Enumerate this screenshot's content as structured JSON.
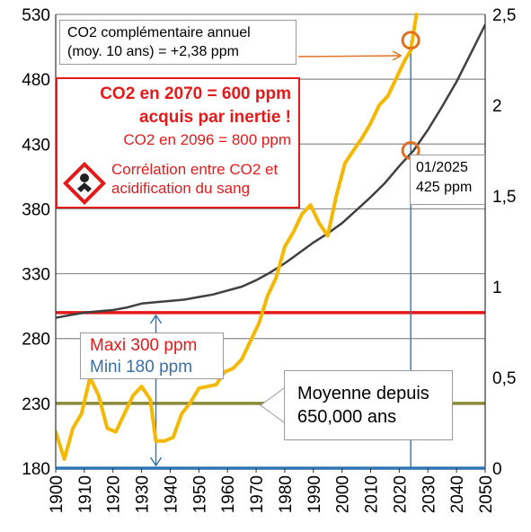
{
  "chart_data": {
    "type": "line",
    "y_left": {
      "ylim": [
        180,
        530
      ],
      "ticks": [
        "530",
        "480",
        "430",
        "380",
        "330",
        "280",
        "230",
        "180"
      ]
    },
    "y_right": {
      "ylim": [
        0,
        2.5
      ],
      "ticks": [
        "2,5",
        "2",
        "1,5",
        "1",
        "0,5",
        "0"
      ]
    },
    "x_axis": {
      "xlim": [
        1900,
        2050
      ],
      "ticks": [
        "1900",
        "1910",
        "1920",
        "1930",
        "1940",
        "1950",
        "1960",
        "1970",
        "1980",
        "1990",
        "2000",
        "2010",
        "2020",
        "2030",
        "2040",
        "2050"
      ]
    },
    "grid": "horizontal",
    "series": [
      {
        "axis": "left",
        "color": "#404040",
        "x": [
          1900,
          1905,
          1910,
          1915,
          1920,
          1925,
          1930,
          1935,
          1940,
          1945,
          1950,
          1955,
          1960,
          1965,
          1970,
          1975,
          1980,
          1985,
          1990,
          1995,
          2000,
          2005,
          2010,
          2015,
          2020,
          2025,
          2030,
          2035,
          2040,
          2045,
          2050
        ],
        "values": [
          296,
          298,
          300,
          301,
          302,
          304,
          307,
          308,
          309,
          310,
          312,
          314,
          317,
          320,
          325,
          331,
          338,
          346,
          354,
          361,
          369,
          379,
          389,
          400,
          413,
          425,
          441,
          459,
          478,
          500,
          522
        ]
      },
      {
        "axis": "right",
        "color": "#f5b800",
        "x": [
          1900,
          1903,
          1906,
          1909,
          1912,
          1915,
          1918,
          1921,
          1924,
          1927,
          1930,
          1933,
          1935,
          1938,
          1941,
          1944,
          1947,
          1950,
          1953,
          1956,
          1959,
          1962,
          1965,
          1968,
          1971,
          1974,
          1977,
          1980,
          1983,
          1986,
          1989,
          1992,
          1995,
          1998,
          2001,
          2004,
          2007,
          2010,
          2013,
          2016,
          2019,
          2022,
          2024,
          2026
        ],
        "values": [
          0.2,
          0.05,
          0.22,
          0.3,
          0.5,
          0.4,
          0.22,
          0.2,
          0.3,
          0.4,
          0.45,
          0.38,
          0.15,
          0.15,
          0.17,
          0.3,
          0.36,
          0.44,
          0.45,
          0.46,
          0.53,
          0.55,
          0.6,
          0.7,
          0.8,
          0.95,
          1.05,
          1.22,
          1.3,
          1.4,
          1.45,
          1.35,
          1.28,
          1.5,
          1.68,
          1.75,
          1.82,
          1.9,
          2.0,
          2.05,
          2.15,
          2.25,
          2.3,
          2.5
        ]
      }
    ],
    "reference_lines": [
      {
        "y": 300,
        "color": "#e41a1a"
      },
      {
        "y": 230,
        "color": "#8a8a3a"
      },
      {
        "y": 180,
        "color": "#2e75b6"
      }
    ],
    "vertical_lines": [
      {
        "x": 2024,
        "color": "#2e75b6"
      },
      {
        "x": 1935,
        "color": "#2e75b6"
      }
    ],
    "markers": [
      {
        "x": 2024,
        "y": 425,
        "color": "#e07020"
      },
      {
        "x": 2024,
        "y": 510,
        "color": "#e07020"
      }
    ]
  },
  "annotations": {
    "annual_line1": "CO2 complémentaire annuel",
    "annual_line2": "(moy. 10 ans) = +2,38 ppm",
    "red_line1": "CO2 en 2070 = 600 ppm",
    "red_line2": "acquis par inertie !",
    "red_line3": "CO2 en 2096 = 800 ppm",
    "red_line4": "Corrélation entre CO2 et acidification du sang",
    "max_label": "Maxi 300 ppm",
    "min_label": "Mini   180 ppm",
    "date_line1": "01/2025",
    "date_line2": "425 ppm",
    "mean_line1": "Moyenne depuis",
    "mean_line2": "650,000 ans"
  },
  "colors": {
    "red": "#e41a1a",
    "blue": "#2e75b6",
    "gold": "#f5b800",
    "orange": "#e07020"
  }
}
